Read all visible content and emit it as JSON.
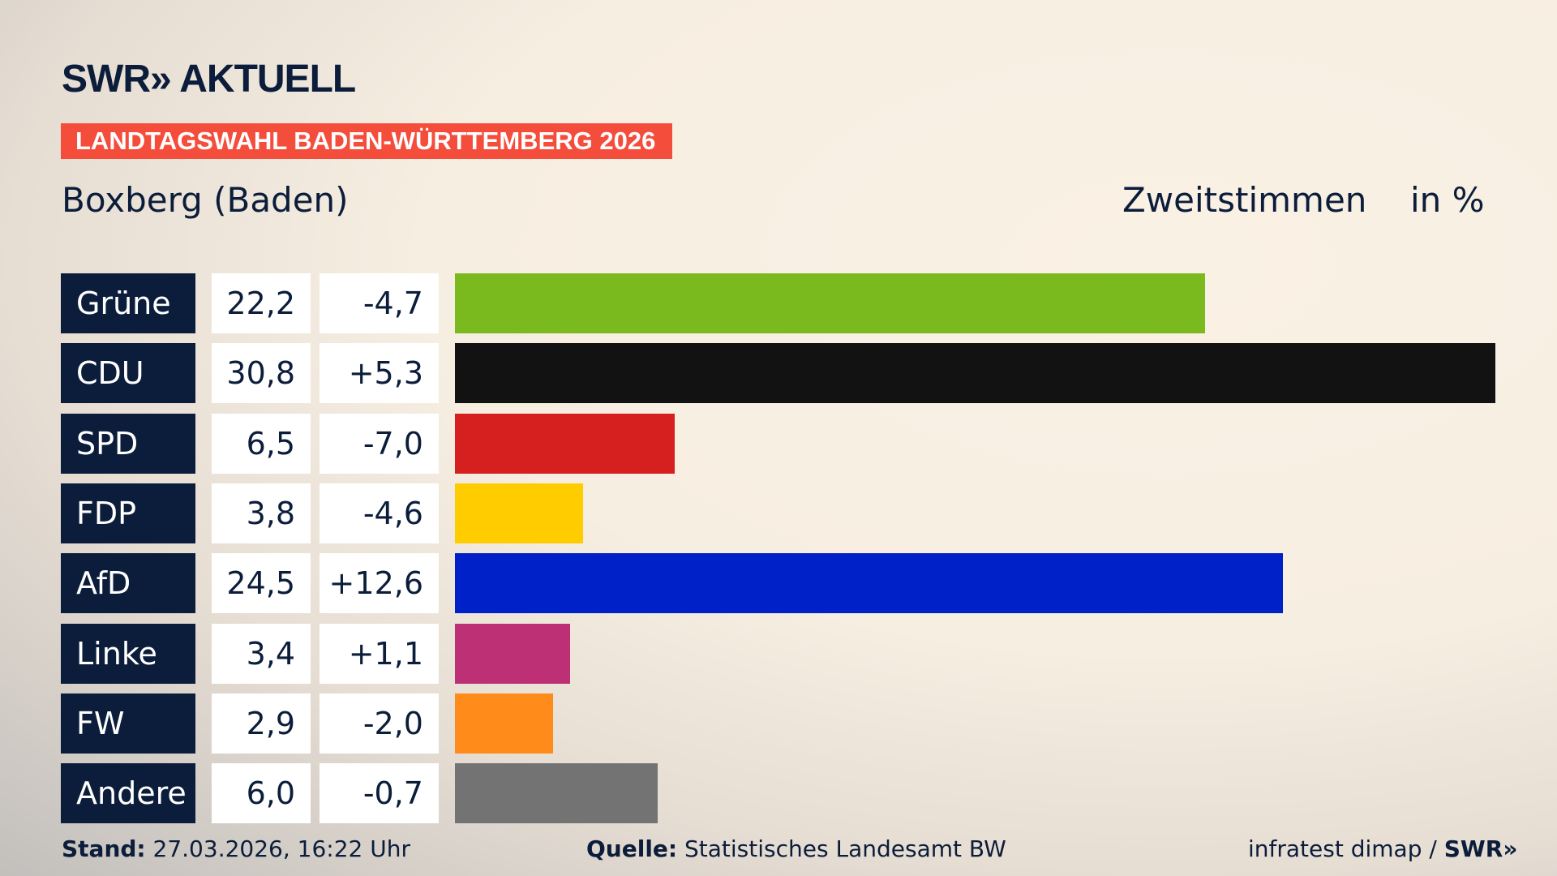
{
  "header": {
    "logo": "SWR» AKTUELL",
    "banner": "LANDTAGSWAHL BADEN-WÜRTTEMBERG 2026",
    "location": "Boxberg (Baden)",
    "measure": "Zweitstimmen",
    "unit": "in %"
  },
  "colors": {
    "navy": "#0b1d3a",
    "banner": "#f44d3c"
  },
  "chart_data": {
    "type": "bar",
    "orientation": "horizontal",
    "title": "Boxberg (Baden)",
    "xlabel": "Zweitstimmen in %",
    "categories": [
      "Grüne",
      "CDU",
      "SPD",
      "FDP",
      "AfD",
      "Linke",
      "FW",
      "Andere"
    ],
    "values": [
      22.2,
      30.8,
      6.5,
      3.8,
      24.5,
      3.4,
      2.9,
      6.0
    ],
    "value_labels": [
      "22,2",
      "30,8",
      "6,5",
      "3,8",
      "24,5",
      "3,4",
      "2,9",
      "6,0"
    ],
    "diff_labels": [
      "-4,7",
      "+5,3",
      "-7,0",
      "-4,6",
      "+12,6",
      "+1,1",
      "-2,0",
      "-0,7"
    ],
    "colors": [
      "#7aba1e",
      "#121212",
      "#d6201f",
      "#ffcc00",
      "#0020c8",
      "#be3075",
      "#ff8c1a",
      "#737373"
    ]
  },
  "footer": {
    "stand_label": "Stand:",
    "stand_value": "27.03.2026, 16:22 Uhr",
    "source_label": "Quelle:",
    "source_value": "Statistisches Landesamt BW",
    "credit": "infratest dimap / ",
    "credit_logo": "SWR»"
  }
}
